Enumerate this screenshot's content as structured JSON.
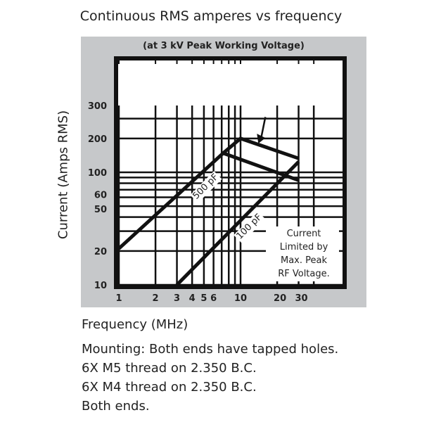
{
  "chart_data": {
    "type": "line",
    "title": "Continuous RMS amperes vs frequency",
    "subtitle": "(at 3 kV Peak Working Voltage)",
    "xlabel": "Frequency (MHz)",
    "ylabel": "Current (Amps RMS)",
    "x_scale": "log",
    "y_scale": "log",
    "xlim": [
      1,
      50
    ],
    "ylim": [
      10,
      800
    ],
    "grid": true,
    "x_ticks": [
      1,
      2,
      3,
      4,
      5,
      6,
      10,
      20,
      30
    ],
    "y_ticks": [
      10,
      20,
      50,
      60,
      100,
      200,
      300
    ],
    "series": [
      {
        "name": "500 pF",
        "x": [
          1,
          7.2,
          10,
          30
        ],
        "y": [
          21,
          148,
          200,
          133
        ]
      },
      {
        "name": "",
        "x": [
          7.2,
          30
        ],
        "y": [
          148,
          85
        ]
      },
      {
        "name": "100 pF",
        "x": [
          3,
          30
        ],
        "y": [
          10,
          124
        ]
      }
    ],
    "annotations": {
      "limit_note": [
        "Current",
        "Limited by",
        "Max. Peak",
        "RF Voltage."
      ],
      "arrow": {
        "from": [
          16,
          310
        ],
        "to": [
          14,
          180
        ]
      }
    }
  },
  "notes": [
    "Mounting: Both ends have tapped holes.",
    "6X M5 thread on 2.350 B.C.",
    "6X M4 thread on 2.350 B.C.",
    "Both ends."
  ]
}
